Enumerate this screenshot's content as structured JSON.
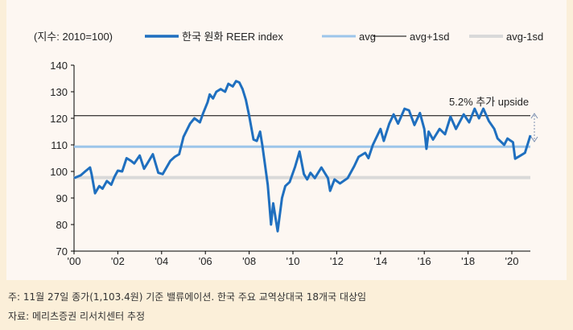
{
  "chart_data": {
    "type": "line",
    "unit_label": "(지수: 2010=100)",
    "ylim": [
      70,
      140
    ],
    "yticks": [
      70,
      80,
      90,
      100,
      110,
      120,
      130,
      140
    ],
    "xlim": [
      2000,
      2021
    ],
    "xticks": [
      {
        "v": 2000,
        "label": "'00"
      },
      {
        "v": 2002,
        "label": "'02"
      },
      {
        "v": 2004,
        "label": "'04"
      },
      {
        "v": 2006,
        "label": "'06"
      },
      {
        "v": 2008,
        "label": "'08"
      },
      {
        "v": 2010,
        "label": "'10"
      },
      {
        "v": 2012,
        "label": "'12"
      },
      {
        "v": 2014,
        "label": "'14"
      },
      {
        "v": 2016,
        "label": "'16"
      },
      {
        "v": 2018,
        "label": "'18"
      },
      {
        "v": 2020,
        "label": "'20"
      }
    ],
    "grid": false,
    "legend_position": "top",
    "series": [
      {
        "name": "한국 원화 REER index",
        "color": "#1f6fbf",
        "x": [
          2000.0,
          2000.3,
          2000.55,
          2000.73,
          2000.8,
          2000.96,
          2001.15,
          2001.3,
          2001.5,
          2001.7,
          2001.85,
          2002.0,
          2002.2,
          2002.4,
          2002.6,
          2002.75,
          2003.0,
          2003.2,
          2003.35,
          2003.6,
          2003.85,
          2004.05,
          2004.4,
          2004.6,
          2004.8,
          2005.0,
          2005.3,
          2005.5,
          2005.75,
          2005.9,
          2006.1,
          2006.2,
          2006.35,
          2006.5,
          2006.7,
          2006.9,
          2007.05,
          2007.25,
          2007.4,
          2007.55,
          2007.7,
          2007.85,
          2008.0,
          2008.2,
          2008.35,
          2008.5,
          2008.6,
          2008.85,
          2009.0,
          2009.1,
          2009.3,
          2009.5,
          2009.65,
          2009.85,
          2010.1,
          2010.3,
          2010.5,
          2010.65,
          2010.8,
          2011.0,
          2011.3,
          2011.6,
          2011.7,
          2011.9,
          2012.15,
          2012.5,
          2012.8,
          2013.0,
          2013.3,
          2013.45,
          2013.65,
          2014.0,
          2014.15,
          2014.4,
          2014.6,
          2014.8,
          2015.1,
          2015.3,
          2015.55,
          2015.8,
          2016.0,
          2016.1,
          2016.2,
          2016.4,
          2016.7,
          2016.95,
          2017.2,
          2017.45,
          2017.8,
          2018.05,
          2018.3,
          2018.5,
          2018.7,
          2018.95,
          2019.2,
          2019.35,
          2019.65,
          2019.8,
          2020.05,
          2020.15,
          2020.4,
          2020.6,
          2020.85
        ],
        "values": [
          97.5,
          98.5,
          100.3,
          101.5,
          99,
          91.8,
          94.5,
          93.5,
          96.4,
          95,
          98,
          100.3,
          100,
          105,
          104,
          103,
          106,
          101,
          103,
          106.5,
          99.5,
          99,
          104,
          105.5,
          106.5,
          113,
          118,
          120,
          118.5,
          122,
          126,
          129,
          127.5,
          130,
          131,
          130,
          133,
          132,
          134,
          133.5,
          131,
          127,
          121,
          112,
          111.5,
          115,
          110,
          95,
          80,
          88,
          77.5,
          90,
          94.5,
          96,
          101.8,
          107.5,
          99,
          97,
          99.5,
          97.5,
          101.5,
          97.5,
          92.7,
          97,
          95.5,
          97.5,
          102,
          105.5,
          107,
          105,
          110,
          116,
          111.5,
          118,
          121.5,
          118,
          123.6,
          123,
          117.5,
          122,
          116,
          108.5,
          115,
          112,
          116,
          114,
          120.6,
          116,
          121.5,
          118.5,
          123.6,
          120,
          123.6,
          119,
          116,
          112.4,
          110,
          112.4,
          111,
          104.8,
          106,
          107,
          113.6
        ]
      },
      {
        "name": "avg",
        "color": "#9cc5ea",
        "value": 109.3
      },
      {
        "name": "avg+1sd",
        "color": "#000000",
        "value": 121
      },
      {
        "name": "avg-1sd",
        "color": "#d9d9d9",
        "value": 97.7
      }
    ],
    "annotation": "5.2% 추가 upside"
  },
  "footnotes": [
    "주: 11월 27일 종가(1,103.4원) 기준 밸류에이션. 한국 주요 교역상대국 18개국 대상임",
    "자료: 메리츠증권 리서치센터 추정"
  ]
}
